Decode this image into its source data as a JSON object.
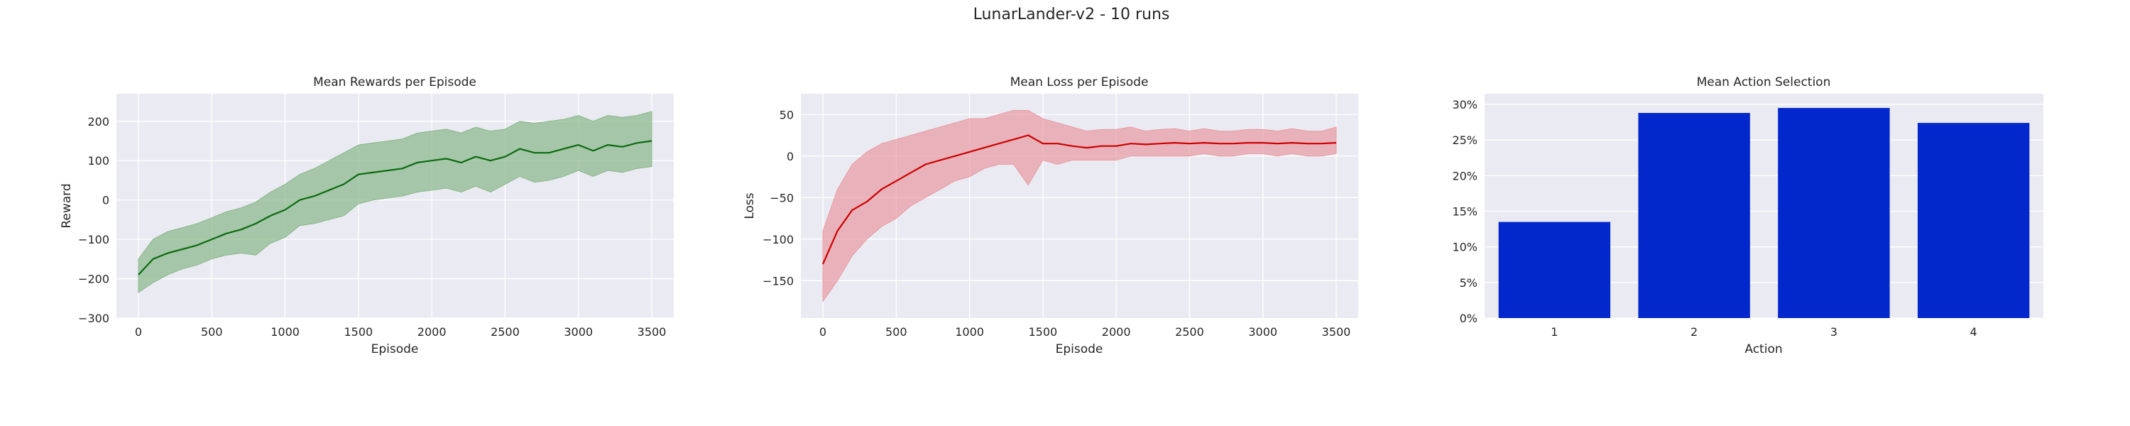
{
  "figure": {
    "title": "LunarLander-v2 - 10 runs"
  },
  "chart_data": [
    {
      "type": "line",
      "title": "Mean Rewards per Episode",
      "xlabel": "Episode",
      "ylabel": "Reward",
      "xlim": [
        -150,
        3650
      ],
      "ylim": [
        -300,
        270
      ],
      "xticks": [
        0,
        500,
        1000,
        1500,
        2000,
        2500,
        3000,
        3500
      ],
      "yticks": [
        -300,
        -200,
        -100,
        0,
        100,
        200
      ],
      "grid": true,
      "color": "#0b6b10",
      "band_color": "#7fb27f",
      "x": [
        0,
        100,
        200,
        300,
        400,
        500,
        600,
        700,
        800,
        900,
        1000,
        1100,
        1200,
        1300,
        1400,
        1500,
        1600,
        1700,
        1800,
        1900,
        2000,
        2100,
        2200,
        2300,
        2400,
        2500,
        2600,
        2700,
        2800,
        2900,
        3000,
        3100,
        3200,
        3300,
        3400,
        3500
      ],
      "series": [
        {
          "mean": [
            -190,
            -150,
            -135,
            -125,
            -115,
            -100,
            -85,
            -75,
            -60,
            -40,
            -25,
            0,
            10,
            25,
            40,
            65,
            70,
            75,
            80,
            95,
            100,
            105,
            95,
            110,
            100,
            110,
            130,
            120,
            120,
            130,
            140,
            125,
            140,
            135,
            145,
            150
          ],
          "lower": [
            -235,
            -210,
            -190,
            -175,
            -165,
            -150,
            -140,
            -135,
            -140,
            -110,
            -95,
            -65,
            -60,
            -50,
            -40,
            -10,
            0,
            5,
            10,
            20,
            25,
            30,
            20,
            35,
            20,
            40,
            60,
            45,
            50,
            60,
            75,
            60,
            75,
            70,
            80,
            85
          ],
          "upper": [
            -150,
            -100,
            -80,
            -70,
            -60,
            -45,
            -30,
            -20,
            -5,
            20,
            40,
            65,
            80,
            100,
            120,
            140,
            145,
            150,
            155,
            170,
            175,
            180,
            170,
            185,
            175,
            180,
            200,
            195,
            200,
            205,
            215,
            200,
            215,
            210,
            215,
            225
          ]
        }
      ]
    },
    {
      "type": "line",
      "title": "Mean Loss per Episode",
      "xlabel": "Episode",
      "ylabel": "Loss",
      "xlim": [
        -150,
        3650
      ],
      "ylim": [
        -195,
        75
      ],
      "xticks": [
        0,
        500,
        1000,
        1500,
        2000,
        2500,
        3000,
        3500
      ],
      "yticks": [
        -150,
        -100,
        -50,
        0,
        50
      ],
      "grid": true,
      "color": "#cc0000",
      "band_color": "#e8939b",
      "x": [
        0,
        100,
        200,
        300,
        400,
        500,
        600,
        700,
        800,
        900,
        1000,
        1100,
        1200,
        1300,
        1400,
        1500,
        1600,
        1700,
        1800,
        1900,
        2000,
        2100,
        2200,
        2300,
        2400,
        2500,
        2600,
        2700,
        2800,
        2900,
        3000,
        3100,
        3200,
        3300,
        3400,
        3500
      ],
      "series": [
        {
          "mean": [
            -130,
            -90,
            -65,
            -55,
            -40,
            -30,
            -20,
            -10,
            -5,
            0,
            5,
            10,
            15,
            20,
            25,
            15,
            15,
            12,
            10,
            12,
            12,
            15,
            14,
            15,
            16,
            15,
            16,
            15,
            15,
            16,
            16,
            15,
            16,
            15,
            15,
            16
          ],
          "lower": [
            -175,
            -150,
            -120,
            -100,
            -85,
            -75,
            -60,
            -50,
            -40,
            -30,
            -25,
            -15,
            -10,
            -10,
            -35,
            -5,
            -10,
            -5,
            -5,
            -5,
            -5,
            0,
            0,
            0,
            0,
            0,
            3,
            0,
            0,
            3,
            3,
            0,
            3,
            0,
            0,
            3
          ],
          "upper": [
            -90,
            -40,
            -10,
            5,
            15,
            20,
            25,
            30,
            35,
            40,
            45,
            45,
            50,
            55,
            55,
            45,
            40,
            35,
            30,
            32,
            32,
            35,
            30,
            32,
            33,
            30,
            33,
            30,
            30,
            32,
            32,
            30,
            33,
            30,
            30,
            35
          ]
        }
      ]
    },
    {
      "type": "bar",
      "title": "Mean Action Selection",
      "xlabel": "Action",
      "ylabel": "",
      "categories": [
        "1",
        "2",
        "3",
        "4"
      ],
      "values": [
        13.5,
        28.8,
        29.5,
        27.4
      ],
      "ylim": [
        0,
        31.5
      ],
      "yticks": [
        0,
        5,
        10,
        15,
        20,
        25,
        30
      ],
      "ytick_format": "percent",
      "grid": true,
      "color": "#0228cc"
    }
  ]
}
